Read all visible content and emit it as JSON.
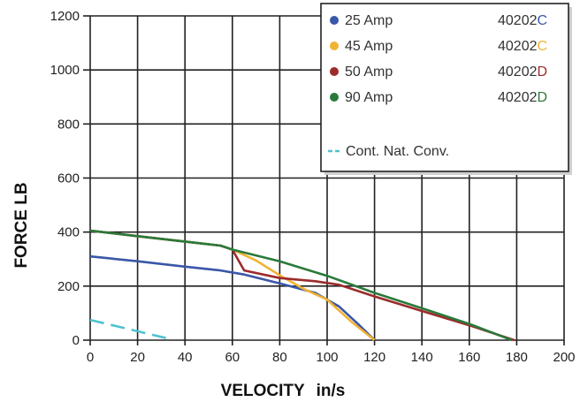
{
  "chart_data": {
    "type": "line",
    "xlabel": "VELOCITY",
    "xlabel_unit": "in/s",
    "ylabel": "FORCE LB",
    "xlim": [
      0,
      200
    ],
    "ylim": [
      0,
      1200
    ],
    "x_ticks": [
      "0",
      "20",
      "40",
      "60",
      "80",
      "100",
      "120",
      "140",
      "160",
      "180",
      "200"
    ],
    "y_ticks": [
      "0",
      "200",
      "400",
      "600",
      "800",
      "1000",
      "1200"
    ],
    "grid": true,
    "legend_position": "top-right",
    "series": [
      {
        "name": "25 Amp",
        "model_prefix": "40202",
        "model_suffix": "C",
        "color": "#3a57a8",
        "suffix_color": "#3a57a8",
        "points": [
          [
            0,
            310
          ],
          [
            20,
            292
          ],
          [
            40,
            272
          ],
          [
            55,
            258
          ],
          [
            65,
            243
          ],
          [
            80,
            210
          ],
          [
            95,
            175
          ],
          [
            105,
            125
          ],
          [
            113,
            60
          ],
          [
            120,
            0
          ]
        ]
      },
      {
        "name": "45 Amp",
        "model_prefix": "40202",
        "model_suffix": "C",
        "color": "#f2b233",
        "suffix_color": "#f2b233",
        "points": [
          [
            0,
            405
          ],
          [
            20,
            385
          ],
          [
            40,
            365
          ],
          [
            55,
            350
          ],
          [
            60,
            335
          ],
          [
            70,
            295
          ],
          [
            80,
            240
          ],
          [
            90,
            190
          ],
          [
            100,
            150
          ],
          [
            110,
            70
          ],
          [
            120,
            0
          ]
        ]
      },
      {
        "name": "50 Amp",
        "model_prefix": "40202",
        "model_suffix": "D",
        "color": "#9c2b2b",
        "suffix_color": "#9c2b2b",
        "points": [
          [
            0,
            405
          ],
          [
            20,
            385
          ],
          [
            40,
            365
          ],
          [
            55,
            350
          ],
          [
            60,
            335
          ],
          [
            65,
            258
          ],
          [
            80,
            230
          ],
          [
            95,
            218
          ],
          [
            105,
            205
          ],
          [
            120,
            162
          ],
          [
            140,
            108
          ],
          [
            160,
            55
          ],
          [
            179,
            0
          ]
        ]
      },
      {
        "name": "90 Amp",
        "model_prefix": "40202",
        "model_suffix": "D",
        "color": "#2a7a3a",
        "suffix_color": "#2a7a3a",
        "points": [
          [
            0,
            405
          ],
          [
            20,
            385
          ],
          [
            40,
            365
          ],
          [
            55,
            350
          ],
          [
            60,
            335
          ],
          [
            80,
            292
          ],
          [
            100,
            238
          ],
          [
            120,
            175
          ],
          [
            140,
            118
          ],
          [
            160,
            60
          ],
          [
            178,
            0
          ]
        ]
      }
    ],
    "reference_line": {
      "label": "Cont. Nat. Conv.",
      "color": "#4fc2cf",
      "dashed": true,
      "points": [
        [
          0,
          75
        ],
        [
          32,
          8
        ]
      ]
    }
  }
}
